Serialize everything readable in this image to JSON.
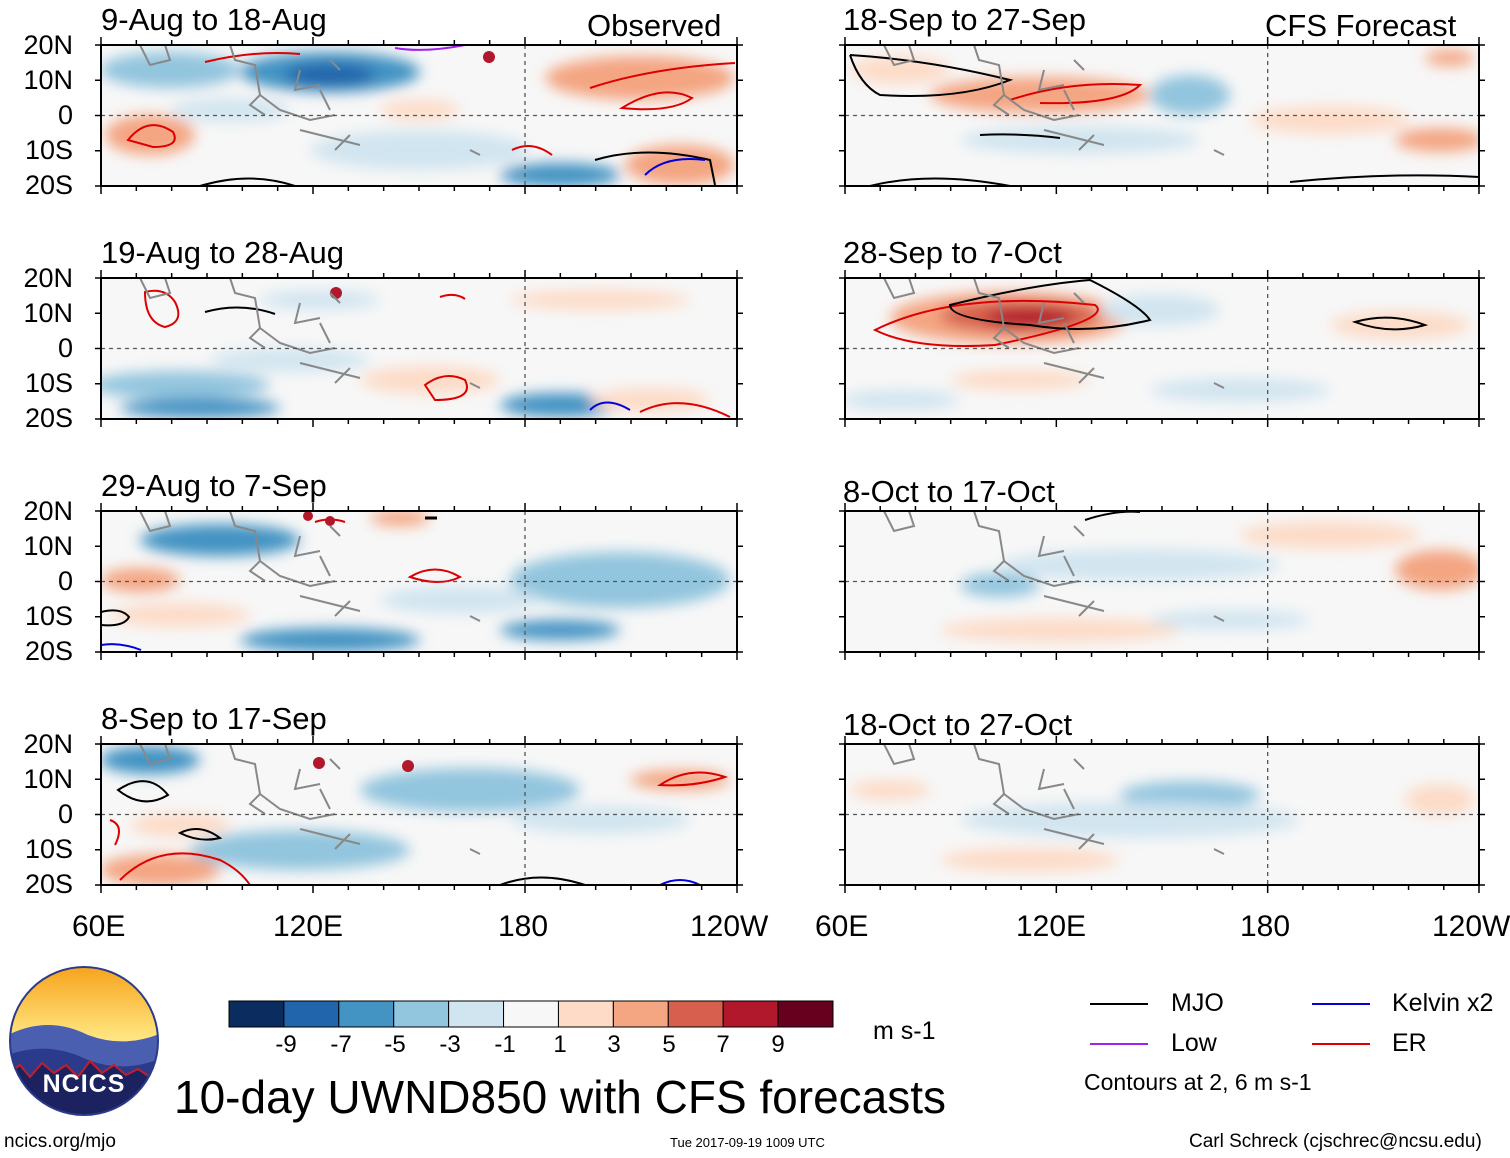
{
  "main_title": "10-day UWND850 with CFS forecasts",
  "units": "m s-1",
  "contour_note": "Contours at 2, 6 m s-1",
  "left_column_label": "Observed",
  "right_column_label": "CFS Forecast",
  "lat_labels": [
    "20N",
    "10N",
    "0",
    "10S",
    "20S"
  ],
  "lon_labels": [
    "60E",
    "120E",
    "180",
    "120W"
  ],
  "panels_left": [
    {
      "title": "9-Aug to 18-Aug"
    },
    {
      "title": "19-Aug to 28-Aug"
    },
    {
      "title": "29-Aug to 7-Sep"
    },
    {
      "title": "8-Sep to 17-Sep"
    }
  ],
  "panels_right": [
    {
      "title": "18-Sep to 27-Sep"
    },
    {
      "title": "28-Sep to 7-Oct"
    },
    {
      "title": "8-Oct to 17-Oct"
    },
    {
      "title": "18-Oct to 27-Oct"
    }
  ],
  "colorbar": {
    "ticks": [
      "-9",
      "-7",
      "-5",
      "-3",
      "-1",
      "1",
      "3",
      "5",
      "7",
      "9"
    ],
    "colors": [
      "#0b2c5e",
      "#2166ac",
      "#4393c3",
      "#92c5de",
      "#d1e5f0",
      "#f7f7f7",
      "#fddbc7",
      "#f4a582",
      "#d6604d",
      "#b2182b",
      "#67001f"
    ]
  },
  "legend": [
    {
      "label": "MJO",
      "color": "#000000"
    },
    {
      "label": "Kelvin x2",
      "color": "#0000dd"
    },
    {
      "label": "Low",
      "color": "#a020f0"
    },
    {
      "label": "ER",
      "color": "#dd0000"
    }
  ],
  "logo_text": "NCICS",
  "footer": {
    "url": "ncics.org/mjo",
    "timestamp": "Tue 2017-09-19 1009 UTC",
    "credit": "Carl Schreck (cjschrec@ncsu.edu)"
  }
}
